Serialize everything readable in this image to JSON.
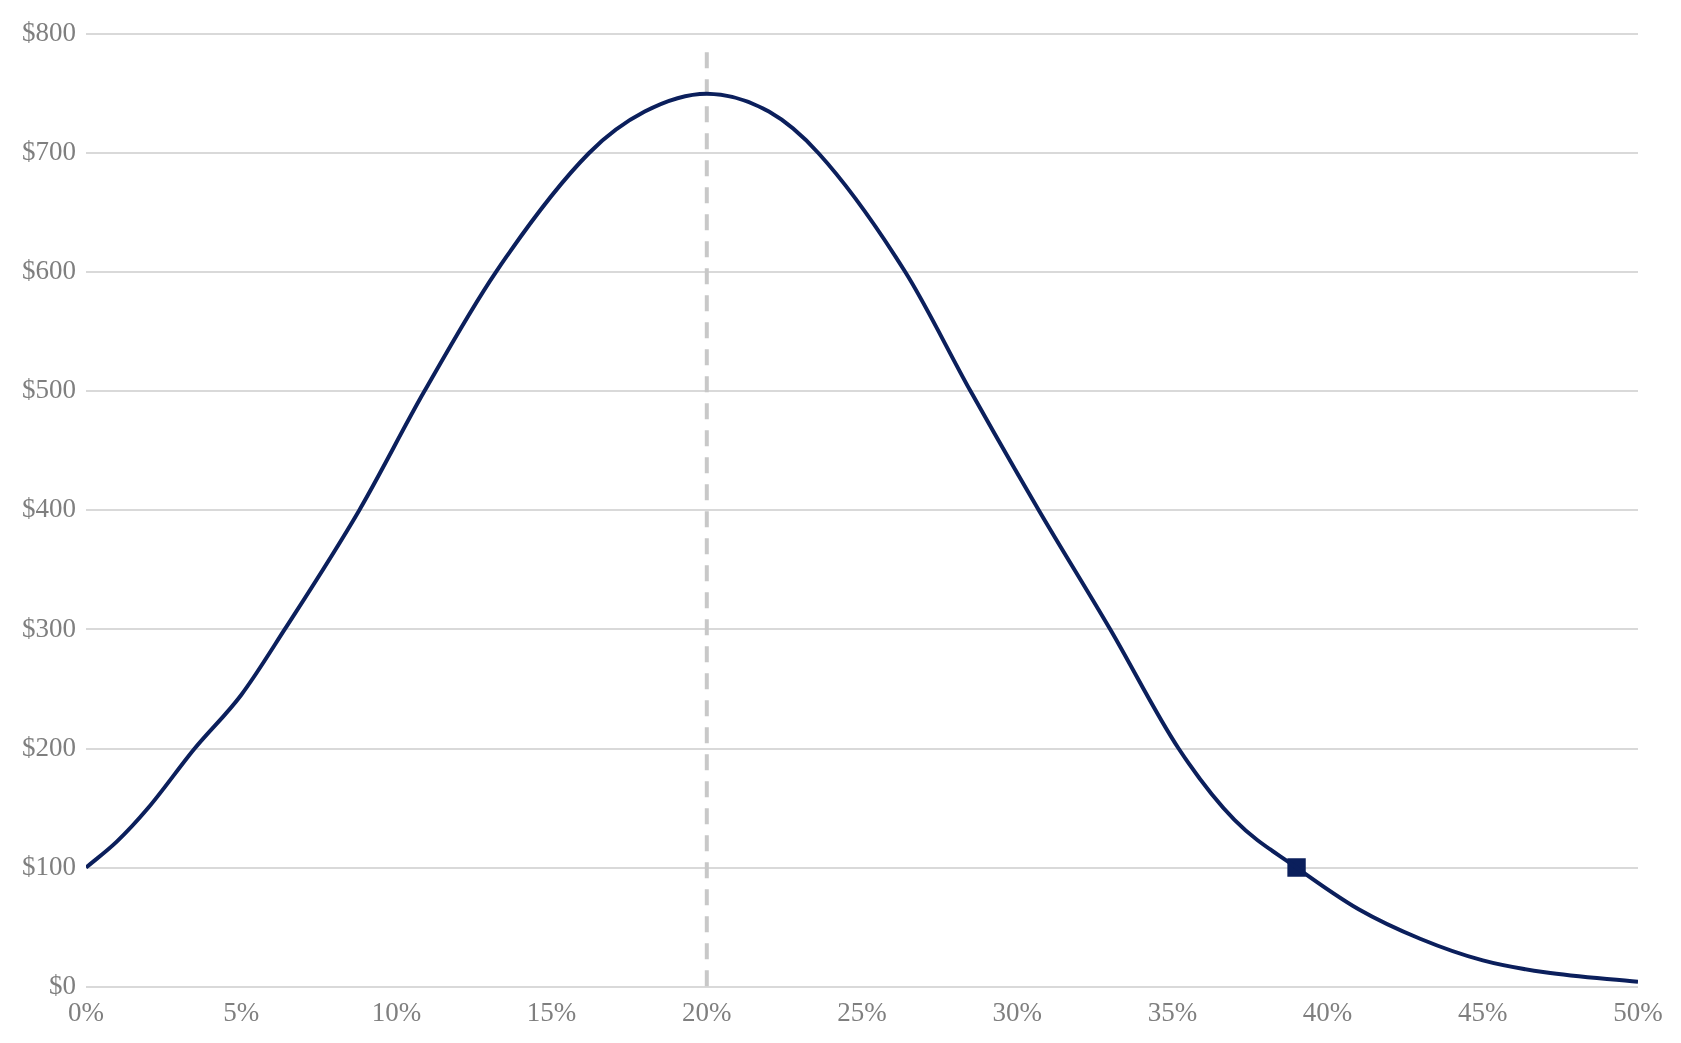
{
  "chart_data": {
    "type": "line",
    "xlim": [
      0,
      50
    ],
    "ylim": [
      0,
      800
    ],
    "xticks": [
      {
        "value": 0,
        "label": "0%"
      },
      {
        "value": 5,
        "label": "5%"
      },
      {
        "value": 10,
        "label": "10%"
      },
      {
        "value": 15,
        "label": "15%"
      },
      {
        "value": 20,
        "label": "20%"
      },
      {
        "value": 25,
        "label": "25%"
      },
      {
        "value": 30,
        "label": "30%"
      },
      {
        "value": 35,
        "label": "35%"
      },
      {
        "value": 40,
        "label": "40%"
      },
      {
        "value": 45,
        "label": "45%"
      },
      {
        "value": 50,
        "label": "50%"
      }
    ],
    "yticks": [
      {
        "value": 0,
        "label": "$0"
      },
      {
        "value": 100,
        "label": "$100"
      },
      {
        "value": 200,
        "label": "$200"
      },
      {
        "value": 300,
        "label": "$300"
      },
      {
        "value": 400,
        "label": "$400"
      },
      {
        "value": 500,
        "label": "$500"
      },
      {
        "value": 600,
        "label": "$600"
      },
      {
        "value": 700,
        "label": "$700"
      },
      {
        "value": 800,
        "label": "$800"
      }
    ],
    "grid": "y",
    "legend": false,
    "marker": "none",
    "line_style": "solid",
    "series": [
      {
        "color": "#0b1f5c",
        "x": [
          0,
          1,
          2,
          3.5,
          5,
          6.4,
          8.8,
          10.9,
          13.2,
          16.2,
          18,
          20,
          22,
          23.6,
          26.4,
          28.5,
          30.7,
          33,
          35.2,
          37,
          39,
          41,
          43,
          45,
          47,
          50
        ],
        "values": [
          100,
          122,
          150,
          200,
          245,
          300,
          400,
          500,
          600,
          700,
          735,
          750,
          735,
          700,
          600,
          500,
          400,
          300,
          200,
          140,
          100,
          65,
          40,
          22,
          12,
          4
        ]
      },
      {
        "type": "scatter",
        "color": "#0b1f5c",
        "marker": "square",
        "x": [
          39
        ],
        "values": [
          100
        ]
      }
    ],
    "ref_lines": [
      {
        "axis": "x",
        "value": 20,
        "color": "#c8c8c8",
        "line_style": "dashed"
      }
    ]
  }
}
